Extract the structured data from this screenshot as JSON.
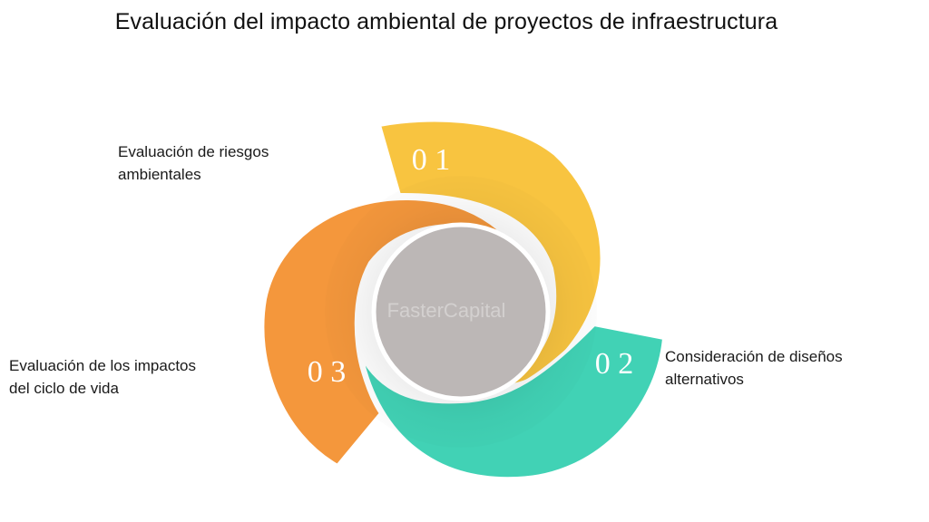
{
  "title": "Evaluación del impacto ambiental de proyectos de infraestructura",
  "center_watermark": "FasterCapital",
  "colors": {
    "step1": "#F8C440",
    "step2": "#41D2B5",
    "step3": "#F4973C",
    "center": "#BCB7B6"
  },
  "steps": [
    {
      "number": "0 1",
      "lines": [
        "Evaluación de riesgos",
        "ambientales"
      ]
    },
    {
      "number": "0 2",
      "lines": [
        "Consideración de diseños",
        "alternativos"
      ]
    },
    {
      "number": "0 3",
      "lines": [
        "Evaluación de los impactos",
        "del ciclo de vida"
      ]
    }
  ]
}
